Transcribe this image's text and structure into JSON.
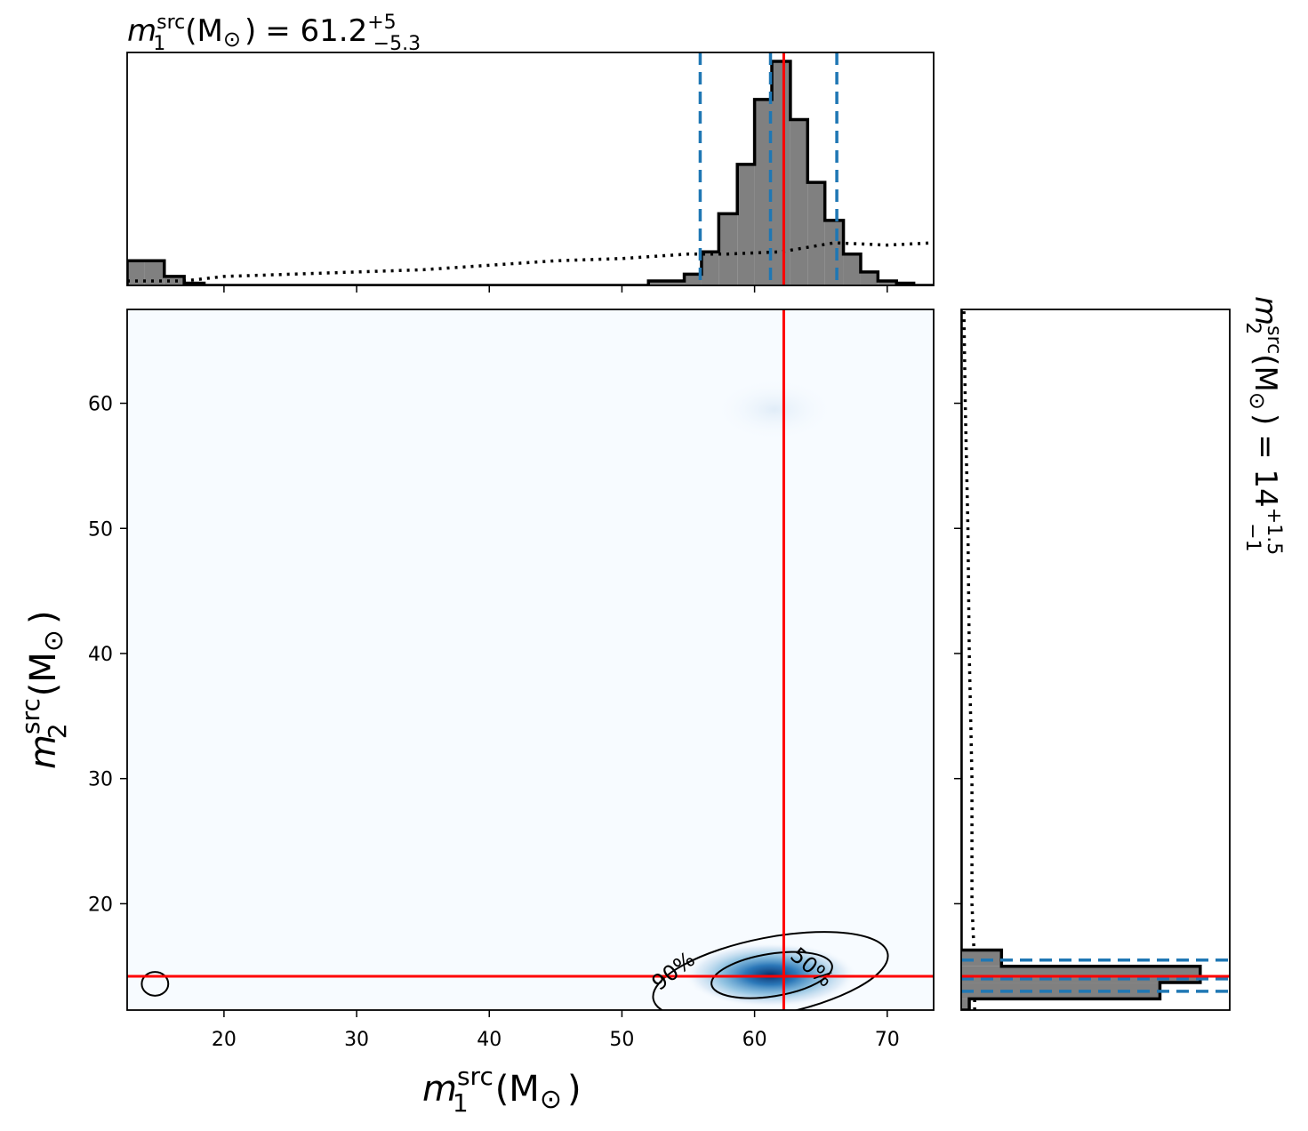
{
  "chart_data": [
    {
      "panel": "top-marginal",
      "type": "histogram",
      "title": {
        "var": "m",
        "sub": "1",
        "sup": "src",
        "units": "(M",
        "sun": "⊙",
        "close": ")",
        "eq": "= 61.2",
        "plus": "+5",
        "minus": "−5.3"
      },
      "xlim": [
        12.7,
        73.5
      ],
      "bins": [
        {
          "x0": 12.7,
          "x1": 14.0,
          "h": 0.11
        },
        {
          "x0": 14.0,
          "x1": 15.5,
          "h": 0.11
        },
        {
          "x0": 15.5,
          "x1": 17.0,
          "h": 0.04
        },
        {
          "x0": 17.0,
          "x1": 18.5,
          "h": 0.01
        },
        {
          "x0": 18.5,
          "x1": 52.0,
          "h": 0.0
        },
        {
          "x0": 52.0,
          "x1": 54.7,
          "h": 0.02
        },
        {
          "x0": 54.7,
          "x1": 56.0,
          "h": 0.05
        },
        {
          "x0": 56.0,
          "x1": 57.3,
          "h": 0.15
        },
        {
          "x0": 57.3,
          "x1": 58.7,
          "h": 0.32
        },
        {
          "x0": 58.7,
          "x1": 60.0,
          "h": 0.54
        },
        {
          "x0": 60.0,
          "x1": 61.3,
          "h": 0.83
        },
        {
          "x0": 61.3,
          "x1": 62.7,
          "h": 1.0
        },
        {
          "x0": 62.7,
          "x1": 64.0,
          "h": 0.74
        },
        {
          "x0": 64.0,
          "x1": 65.3,
          "h": 0.46
        },
        {
          "x0": 65.3,
          "x1": 66.7,
          "h": 0.29
        },
        {
          "x0": 66.7,
          "x1": 68.0,
          "h": 0.14
        },
        {
          "x0": 68.0,
          "x1": 69.3,
          "h": 0.06
        },
        {
          "x0": 69.3,
          "x1": 70.7,
          "h": 0.02
        },
        {
          "x0": 70.7,
          "x1": 72.0,
          "h": 0.01
        },
        {
          "x0": 72.0,
          "x1": 73.5,
          "h": 0.0
        }
      ],
      "prior": [
        {
          "x": 12.7,
          "y": 0.02
        },
        {
          "x": 17.0,
          "y": 0.02
        },
        {
          "x": 20.0,
          "y": 0.04
        },
        {
          "x": 25.0,
          "y": 0.05
        },
        {
          "x": 30.0,
          "y": 0.06
        },
        {
          "x": 35.0,
          "y": 0.07
        },
        {
          "x": 40.0,
          "y": 0.09
        },
        {
          "x": 45.0,
          "y": 0.11
        },
        {
          "x": 50.0,
          "y": 0.12
        },
        {
          "x": 55.0,
          "y": 0.14
        },
        {
          "x": 58.0,
          "y": 0.14
        },
        {
          "x": 62.0,
          "y": 0.15
        },
        {
          "x": 66.0,
          "y": 0.19
        },
        {
          "x": 70.0,
          "y": 0.18
        },
        {
          "x": 73.5,
          "y": 0.19
        }
      ],
      "quantiles": [
        55.9,
        61.2,
        66.2
      ],
      "truth": 62.2,
      "colors": {
        "fill": "#808080",
        "edge": "#000000",
        "quantile": "#1f77b4",
        "truth": "#ff0000"
      }
    },
    {
      "panel": "joint",
      "type": "heatmap",
      "xlim": [
        12.7,
        73.5
      ],
      "ylim": [
        11.5,
        67.5
      ],
      "xticks": [
        20,
        30,
        40,
        50,
        60,
        70
      ],
      "yticks": [
        20,
        30,
        40,
        50,
        60
      ],
      "xlabel": {
        "var": "m",
        "sub": "1",
        "sup": "src",
        "units": "(M",
        "sun": "⊙",
        "close": ")"
      },
      "ylabel": {
        "var": "m",
        "sub": "2",
        "sup": "src",
        "units": "(M",
        "sun": "⊙",
        "close": ")"
      },
      "density_peak": {
        "x": 61.2,
        "y": 14.3
      },
      "contours": [
        {
          "level": "50%",
          "cx": 61.3,
          "cy": 14.3,
          "rx": 4.6,
          "ry": 1.7,
          "tilt_deg": -9
        },
        {
          "level": "90%",
          "cx": 61.2,
          "cy": 14.2,
          "rx": 9.0,
          "ry": 3.1,
          "tilt_deg": -11
        },
        {
          "level": "90%",
          "cx": 14.8,
          "cy": 13.6,
          "rx": 1.0,
          "ry": 0.95,
          "tilt_deg": 0
        }
      ],
      "contour_labels": [
        "90%",
        "50%"
      ],
      "truth": {
        "x": 62.2,
        "y": 14.2
      },
      "colors": {
        "background": "#f7fbff",
        "peak": "#08519c",
        "truth": "#ff0000",
        "contour": "#000000"
      }
    },
    {
      "panel": "right-marginal",
      "type": "histogram",
      "orientation": "horizontal",
      "title": {
        "var": "m",
        "sub": "2",
        "sup": "src",
        "units": "(M",
        "sun": "⊙",
        "close": ")",
        "eq": "= 14",
        "plus": "+1.5",
        "minus": "−1"
      },
      "ylim": [
        11.5,
        67.5
      ],
      "bins": [
        {
          "y0": 11.5,
          "y1": 12.4,
          "w": 0.03
        },
        {
          "y0": 12.4,
          "y1": 13.7,
          "w": 0.74
        },
        {
          "y0": 13.7,
          "y1": 15.0,
          "w": 0.89
        },
        {
          "y0": 15.0,
          "y1": 16.3,
          "w": 0.15
        },
        {
          "y0": 16.3,
          "y1": 67.5,
          "w": 0.0
        }
      ],
      "prior": [
        {
          "y": 11.5,
          "x": 0.05
        },
        {
          "y": 15.0,
          "x": 0.05
        },
        {
          "y": 20.0,
          "x": 0.04
        },
        {
          "y": 30.0,
          "x": 0.04
        },
        {
          "y": 40.0,
          "x": 0.03
        },
        {
          "y": 50.0,
          "x": 0.025
        },
        {
          "y": 60.0,
          "x": 0.015
        },
        {
          "y": 67.5,
          "x": 0.01
        }
      ],
      "quantiles": [
        13.0,
        14.0,
        15.5
      ],
      "truth": 14.2,
      "colors": {
        "fill": "#808080",
        "edge": "#000000",
        "quantile": "#1f77b4",
        "truth": "#ff0000"
      }
    }
  ]
}
